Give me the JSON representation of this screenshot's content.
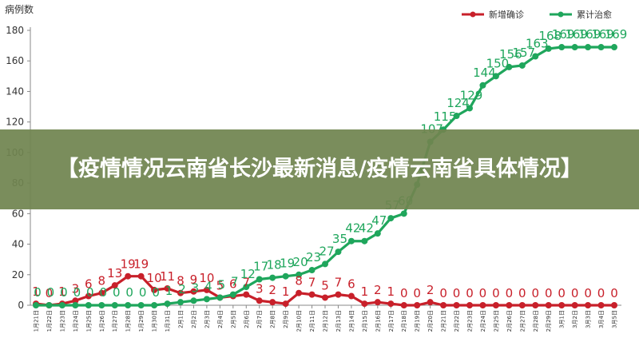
{
  "banner": {
    "title": "【疫情情况云南省长沙最新消息/疫情云南省具体情况】"
  },
  "chart_data": {
    "type": "line",
    "ylabel": "病例数",
    "ylim": [
      0,
      180
    ],
    "yticks": [
      0,
      20,
      40,
      60,
      80,
      100,
      120,
      140,
      160,
      180
    ],
    "legend_position": "top-right",
    "grid": false,
    "categories": [
      "1月21日",
      "1月22日",
      "1月23日",
      "1月24日",
      "1月25日",
      "1月26日",
      "1月27日",
      "1月28日",
      "1月29日",
      "1月30日",
      "1月31日",
      "2月1日",
      "2月2日",
      "2月3日",
      "2月4日",
      "2月5日",
      "2月6日",
      "2月7日",
      "2月8日",
      "2月9日",
      "2月10日",
      "2月11日",
      "2月12日",
      "2月13日",
      "2月14日",
      "2月15日",
      "2月16日",
      "2月17日",
      "2月18日",
      "2月19日",
      "2月20日",
      "2月21日",
      "2月22日",
      "2月23日",
      "2月24日",
      "2月25日",
      "2月26日",
      "2月27日",
      "2月28日",
      "2月29日",
      "3月1日",
      "3月2日",
      "3月3日",
      "3月4日",
      "3月5日"
    ],
    "series": [
      {
        "name": "新增确诊",
        "color": "#c8202a",
        "values": [
          1,
          0,
          1,
          3,
          6,
          8,
          13,
          19,
          19,
          10,
          11,
          8,
          9,
          10,
          5,
          6,
          7,
          3,
          2,
          1,
          8,
          7,
          5,
          7,
          6,
          1,
          2,
          1,
          0,
          0,
          2,
          0,
          0,
          0,
          0,
          0,
          0,
          0,
          0,
          0,
          0,
          0,
          0,
          0,
          0
        ]
      },
      {
        "name": "累计治愈",
        "color": "#1fa65c",
        "values": [
          0,
          0,
          0,
          0,
          0,
          0,
          0,
          0,
          0,
          0,
          1,
          2,
          3,
          4,
          5,
          7,
          12,
          17,
          18,
          19,
          20,
          23,
          27,
          35,
          42,
          42,
          47,
          57,
          60,
          79,
          107,
          115,
          124,
          129,
          144,
          150,
          156,
          157,
          163,
          168,
          169,
          169,
          169,
          169,
          169
        ]
      }
    ]
  }
}
